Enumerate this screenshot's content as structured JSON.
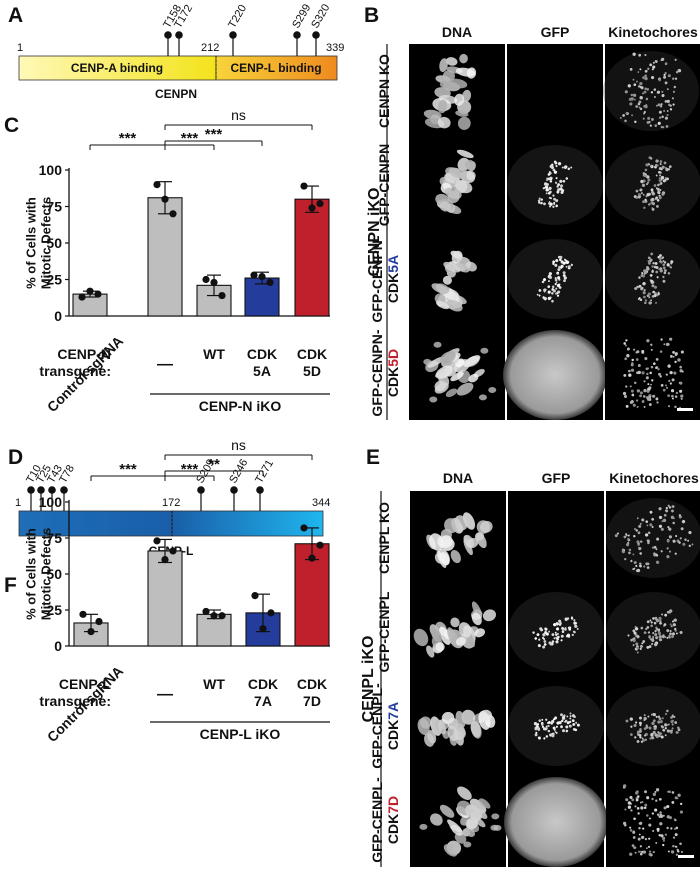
{
  "colors": {
    "gray_bar": "#bebebe",
    "blue_bar": "#243c9c",
    "red_bar": "#c0202c",
    "blue_text": "#243c9c",
    "red_text": "#c0202c"
  },
  "panel_labels": {
    "a": "A",
    "b": "B",
    "c": "C",
    "d": "D",
    "e": "E",
    "f": "F"
  },
  "domain_a": {
    "start": "1",
    "boundary": "212",
    "end": "339",
    "left_domain": "CENP-A binding",
    "right_domain": "CENP-L binding",
    "protein": "CENPN",
    "sites": [
      "T158",
      "T172",
      "T220",
      "S299",
      "S320"
    ]
  },
  "domain_d": {
    "start": "1",
    "boundary": "172",
    "end": "344",
    "protein": "CENP-L",
    "sites": [
      "T10",
      "T25",
      "T43",
      "T78",
      "S209",
      "S246",
      "T271"
    ]
  },
  "micro_b": {
    "columns": [
      "DNA",
      "GFP",
      "Kinetochores"
    ],
    "rows": [
      {
        "parts": [
          {
            "t": "CENPN KO"
          }
        ]
      },
      {
        "parts": [
          {
            "t": "GFP-CENPN"
          }
        ]
      },
      {
        "parts": [
          {
            "t": "GFP-CENPN-"
          }
        ],
        "parts2": [
          {
            "t": "CDK"
          },
          {
            "t": "5A",
            "c": "blue"
          }
        ]
      },
      {
        "parts": [
          {
            "t": "GFP-CENPN-"
          }
        ],
        "parts2": [
          {
            "t": "CDK"
          },
          {
            "t": "5D",
            "c": "red"
          }
        ]
      }
    ],
    "side_label": "CENPN iKO"
  },
  "micro_e": {
    "columns": [
      "DNA",
      "GFP",
      "Kinetochores"
    ],
    "rows": [
      {
        "parts": [
          {
            "t": "CENPL KO"
          }
        ]
      },
      {
        "parts": [
          {
            "t": "GFP-CENPL"
          }
        ]
      },
      {
        "parts": [
          {
            "t": "GFP-CENPL-"
          }
        ],
        "parts2": [
          {
            "t": "CDK"
          },
          {
            "t": "7A",
            "c": "blue"
          }
        ]
      },
      {
        "parts": [
          {
            "t": "GFP-CENPL-"
          }
        ],
        "parts2": [
          {
            "t": "CDK"
          },
          {
            "t": "7D",
            "c": "red"
          }
        ]
      }
    ],
    "side_label": "CENPL iKO"
  },
  "chart_data": [
    {
      "panel": "C",
      "type": "bar",
      "ylabel": "% of Cells with\nMitotic Defects",
      "ylim": [
        0,
        100
      ],
      "yticks": [
        0,
        25,
        50,
        75,
        100
      ],
      "categories": [
        "Control sgRNA",
        "—",
        "WT",
        "CDK 5A",
        "CDK 5D"
      ],
      "values": [
        15,
        81,
        21,
        26,
        80
      ],
      "errors": [
        2,
        11,
        7,
        4,
        9
      ],
      "points": [
        [
          13,
          17,
          15
        ],
        [
          90,
          80,
          70
        ],
        [
          25,
          23,
          14
        ],
        [
          28,
          27,
          23
        ],
        [
          89,
          74,
          77
        ]
      ],
      "transgene_label": [
        "CENP-N",
        "transgene:"
      ],
      "cat_top": [
        "",
        "—",
        "WT",
        "CDK",
        "CDK"
      ],
      "cat_bottom": [
        "",
        "",
        "",
        "5A",
        "5D"
      ],
      "cat_bottom_color": [
        "",
        "",
        "",
        "blue",
        "red"
      ],
      "group_label": "CENP-N iKO",
      "control_label": "Control sgRNA",
      "significance": [
        {
          "from": 0,
          "to": 1,
          "text": "***",
          "level": 0
        },
        {
          "from": 1,
          "to": 2,
          "text": "***",
          "level": 0
        },
        {
          "from": 1,
          "to": 3,
          "text": "***",
          "level": 1
        },
        {
          "from": 1,
          "to": 4,
          "text": "ns",
          "level": 2
        }
      ]
    },
    {
      "panel": "F",
      "type": "bar",
      "ylabel": "% of Cells with\nMitotic Defects",
      "ylim": [
        0,
        100
      ],
      "yticks": [
        0,
        25,
        50,
        75,
        100
      ],
      "categories": [
        "Control sgRNA",
        "—",
        "WT",
        "CDK 7A",
        "CDK 7D"
      ],
      "values": [
        16,
        66,
        22,
        23,
        71
      ],
      "errors": [
        6,
        8,
        3,
        13,
        11
      ],
      "points": [
        [
          22,
          10,
          17
        ],
        [
          73,
          60,
          66
        ],
        [
          24,
          21,
          21
        ],
        [
          35,
          12,
          23
        ],
        [
          82,
          61,
          70
        ]
      ],
      "transgene_label": [
        "CENP-L",
        "transgene:"
      ],
      "cat_top": [
        "",
        "—",
        "WT",
        "CDK",
        "CDK"
      ],
      "cat_bottom": [
        "",
        "",
        "",
        "7A",
        "7D"
      ],
      "cat_bottom_color": [
        "",
        "",
        "",
        "blue",
        "red"
      ],
      "group_label": "CENP-L iKO",
      "control_label": "Control sgRNA",
      "significance": [
        {
          "from": 0,
          "to": 1,
          "text": "***",
          "level": 0
        },
        {
          "from": 1,
          "to": 2,
          "text": "***",
          "level": 0
        },
        {
          "from": 1,
          "to": 3,
          "text": "**",
          "level": 1
        },
        {
          "from": 1,
          "to": 4,
          "text": "ns",
          "level": 2
        }
      ]
    }
  ]
}
